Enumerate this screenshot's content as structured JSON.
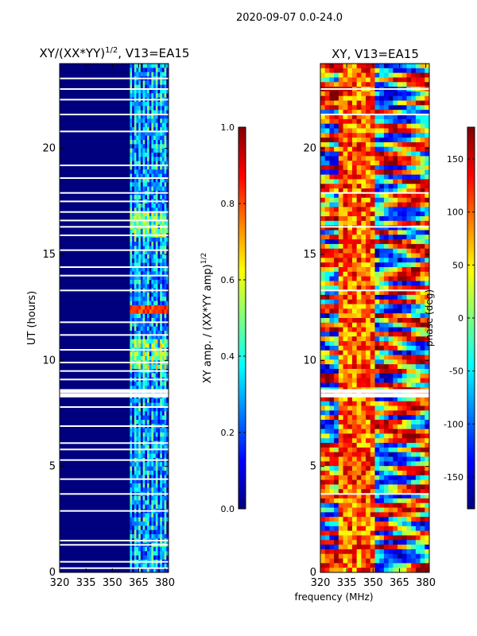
{
  "figure": {
    "suptitle": "2020-09-07 0.0-24.0",
    "shared_xlabel": "frequency (MHz)"
  },
  "colors": {
    "jet": [
      "#00007f",
      "#0000ff",
      "#007fff",
      "#00ffff",
      "#7fff7f",
      "#ffff00",
      "#ff7f00",
      "#ff0000",
      "#7f0000"
    ],
    "gap": "#ffffff",
    "axis": "#000000"
  },
  "chart_data": [
    {
      "type": "heatmap",
      "title_main": "XY/(XX*YY)",
      "title_sup": "1/2",
      "title_rest": ", V13=EA15",
      "xlabel": "",
      "ylabel": "UT (hours)",
      "xlim": [
        320,
        382
      ],
      "ylim": [
        0,
        24
      ],
      "xticks": [
        "320",
        "335",
        "350",
        "365",
        "380"
      ],
      "xtick_values": [
        320,
        335,
        350,
        365,
        380
      ],
      "yticks": [
        "0",
        "5",
        "10",
        "15",
        "20"
      ],
      "ytick_values": [
        0,
        5,
        10,
        15,
        20
      ],
      "active_band_mhz": [
        360,
        382
      ],
      "typical_value_outside_band": 0.02,
      "typical_value_in_band": 0.35,
      "peak_value_hours": [
        12.3,
        12.6
      ],
      "peak_value": 0.9,
      "flagged_hours": [
        0.2,
        0.5,
        1.3,
        1.5,
        2.9,
        3.7,
        4.4,
        5.3,
        5.8,
        6.1,
        6.9,
        7.8,
        8.35,
        8.55,
        9.1,
        9.5,
        9.9,
        10.5,
        11.2,
        11.8,
        13.3,
        14.0,
        14.4,
        15.2,
        15.9,
        16.3,
        16.6,
        17.0,
        17.5,
        17.9,
        18.6,
        19.2,
        20.8,
        21.6,
        22.3,
        22.8,
        23.3
      ]
    },
    {
      "type": "colorbar",
      "label_main": "XY amp. / (XX*YY amp)",
      "label_sup": "1/2",
      "range": [
        0.0,
        1.0
      ],
      "ticks": [
        "0.0",
        "0.2",
        "0.4",
        "0.6",
        "0.8",
        "1.0"
      ],
      "tick_values": [
        0.0,
        0.2,
        0.4,
        0.6,
        0.8,
        1.0
      ]
    },
    {
      "type": "heatmap",
      "title": "XY, V13=EA15",
      "xlabel": "frequency (MHz)",
      "ylabel": "",
      "xlim": [
        320,
        382
      ],
      "ylim": [
        0,
        24
      ],
      "xticks": [
        "320",
        "335",
        "350",
        "365",
        "380"
      ],
      "xtick_values": [
        320,
        335,
        350,
        365,
        380
      ],
      "yticks": [
        "0",
        "5",
        "10",
        "15",
        "20"
      ],
      "ytick_values": [
        0,
        5,
        10,
        15,
        20
      ],
      "value_range_deg": [
        -180,
        180
      ],
      "flagged_hours": [
        3.7,
        8.35,
        8.55,
        13.3,
        16.3,
        17.9,
        21.6,
        22.8
      ]
    },
    {
      "type": "colorbar",
      "label": "phase (deg)",
      "range": [
        -180,
        180
      ],
      "ticks": [
        "-150",
        "-100",
        "-50",
        "0",
        "50",
        "100",
        "150"
      ],
      "tick_values": [
        -150,
        -100,
        -50,
        0,
        50,
        100,
        150
      ]
    }
  ]
}
